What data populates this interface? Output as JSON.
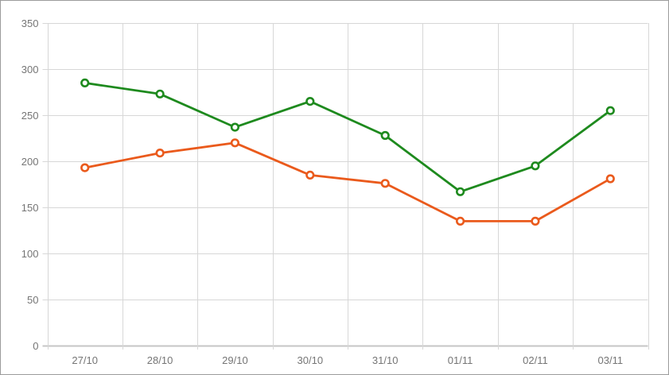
{
  "chart_data": {
    "type": "line",
    "title": "",
    "xlabel": "",
    "ylabel": "",
    "categories": [
      "27/10",
      "28/10",
      "29/10",
      "30/10",
      "31/10",
      "01/11",
      "02/11",
      "03/11"
    ],
    "series": [
      {
        "name": "series-1-green",
        "color": "#1e8a1e",
        "values": [
          285,
          273,
          237,
          265,
          228,
          167,
          195,
          255
        ]
      },
      {
        "name": "series-2-orange",
        "color": "#ea5a1c",
        "values": [
          193,
          209,
          220,
          185,
          176,
          135,
          135,
          181
        ]
      }
    ],
    "ylim": [
      0,
      350
    ],
    "y_ticks": [
      0,
      50,
      100,
      150,
      200,
      250,
      300,
      350
    ],
    "grid": true,
    "legend_position": "none",
    "marker": "hollow-circle",
    "colors": {
      "background": "#ffffff",
      "chart_border": "#9b9b9b",
      "grid": "#d7d7d7",
      "axis_baseline": "#c6c6c6",
      "tick_label": "#757575",
      "marker_fill": "#ffffff"
    },
    "tick_label_font_size": 13
  }
}
